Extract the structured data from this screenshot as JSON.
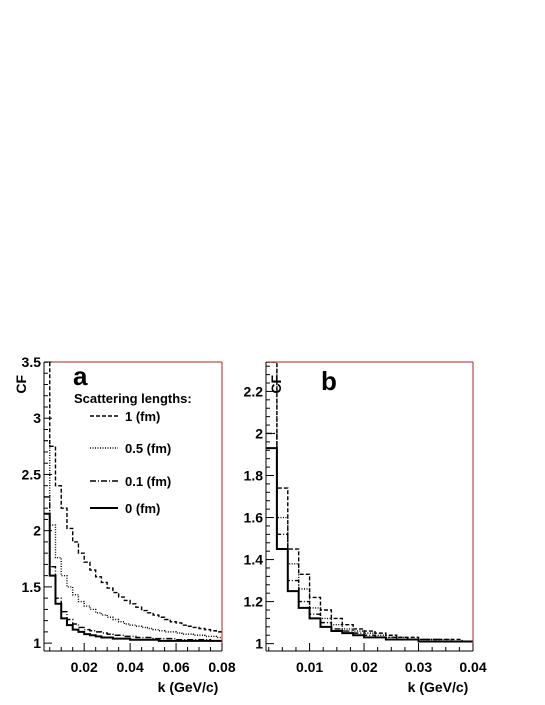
{
  "chart_data": [
    {
      "type": "line",
      "panel_label": "a",
      "xlabel": "k (GeV/c)",
      "ylabel": "CF",
      "xlim": [
        0.0025,
        0.08
      ],
      "ylim": [
        0.93,
        3.5
      ],
      "xticks": [
        0.02,
        0.04,
        0.06,
        0.08
      ],
      "xtick_labels": [
        "0.02",
        "0.04",
        "0.06",
        "0.08"
      ],
      "yticks": [
        1,
        1.5,
        2,
        2.5,
        3,
        3.5
      ],
      "ytick_labels": [
        "1",
        "1.5",
        "2",
        "2.5",
        "3",
        "3.5"
      ],
      "legend_title": "Scattering lengths:",
      "legend_placement": "top",
      "step": true,
      "bin_edges": [
        0.0025,
        0.005,
        0.0075,
        0.01,
        0.0125,
        0.015,
        0.0175,
        0.02,
        0.0225,
        0.025,
        0.0275,
        0.03,
        0.0325,
        0.035,
        0.0375,
        0.04,
        0.0425,
        0.045,
        0.0475,
        0.05,
        0.0525,
        0.055,
        0.0575,
        0.06,
        0.0625,
        0.065,
        0.0675,
        0.07,
        0.0725,
        0.075,
        0.0775,
        0.08
      ],
      "series": [
        {
          "name": "1 (fm)",
          "style": "dashed",
          "values": [
            3.5,
            2.75,
            2.4,
            2.2,
            2.02,
            1.9,
            1.8,
            1.72,
            1.65,
            1.59,
            1.54,
            1.49,
            1.45,
            1.41,
            1.38,
            1.35,
            1.32,
            1.29,
            1.27,
            1.25,
            1.23,
            1.21,
            1.19,
            1.18,
            1.16,
            1.15,
            1.14,
            1.13,
            1.12,
            1.11,
            1.1
          ]
        },
        {
          "name": "0.5 (fm)",
          "style": "dotted",
          "values": [
            2.8,
            2.05,
            1.76,
            1.6,
            1.5,
            1.43,
            1.37,
            1.33,
            1.3,
            1.27,
            1.25,
            1.23,
            1.21,
            1.19,
            1.17,
            1.16,
            1.15,
            1.14,
            1.13,
            1.12,
            1.11,
            1.1,
            1.1,
            1.09,
            1.08,
            1.08,
            1.07,
            1.07,
            1.06,
            1.06,
            1.05
          ]
        },
        {
          "name": "0.1 (fm)",
          "style": "dashdot",
          "values": [
            2.3,
            1.68,
            1.4,
            1.28,
            1.21,
            1.17,
            1.14,
            1.12,
            1.11,
            1.1,
            1.09,
            1.08,
            1.07,
            1.07,
            1.06,
            1.06,
            1.05,
            1.05,
            1.05,
            1.04,
            1.04,
            1.04,
            1.04,
            1.03,
            1.03,
            1.03,
            1.03,
            1.03,
            1.03,
            1.02,
            1.02
          ]
        },
        {
          "name": "0 (fm)",
          "style": "solid",
          "values": [
            2.15,
            1.6,
            1.35,
            1.22,
            1.16,
            1.12,
            1.1,
            1.08,
            1.07,
            1.06,
            1.05,
            1.05,
            1.04,
            1.04,
            1.04,
            1.03,
            1.03,
            1.03,
            1.03,
            1.03,
            1.02,
            1.02,
            1.02,
            1.02,
            1.02,
            1.02,
            1.02,
            1.02,
            1.02,
            1.02,
            1.02
          ]
        }
      ]
    },
    {
      "type": "line",
      "panel_label": "b",
      "xlabel": "k (GeV/c)",
      "ylabel": "CF",
      "xlim": [
        0.002,
        0.04
      ],
      "ylim": [
        0.965,
        2.34
      ],
      "xticks": [
        0.01,
        0.02,
        0.03,
        0.04
      ],
      "xtick_labels": [
        "0.01",
        "0.02",
        "0.03",
        "0.04"
      ],
      "yticks": [
        1,
        1.2,
        1.4,
        1.6,
        1.8,
        2,
        2.2
      ],
      "ytick_labels": [
        "1",
        "1.2",
        "1.4",
        "1.6",
        "1.8",
        "2",
        "2.2"
      ],
      "step": true,
      "bin_edges": [
        0.002,
        0.004,
        0.006,
        0.008,
        0.01,
        0.012,
        0.014,
        0.016,
        0.018,
        0.02,
        0.022,
        0.024,
        0.026,
        0.028,
        0.03,
        0.032,
        0.034,
        0.036,
        0.038,
        0.04
      ],
      "series": [
        {
          "name": "1 (fm)",
          "style": "dashed",
          "values": [
            2.34,
            1.74,
            1.45,
            1.33,
            1.22,
            1.16,
            1.12,
            1.09,
            1.07,
            1.06,
            1.05,
            1.04,
            1.03,
            1.03,
            1.02,
            1.02,
            1.02,
            1.02,
            1.01
          ]
        },
        {
          "name": "0.5 (fm)",
          "style": "dotted",
          "values": [
            2.34,
            1.6,
            1.38,
            1.26,
            1.17,
            1.12,
            1.09,
            1.07,
            1.06,
            1.05,
            1.04,
            1.03,
            1.03,
            1.02,
            1.02,
            1.02,
            1.02,
            1.01,
            1.01
          ]
        },
        {
          "name": "0.1 (fm)",
          "style": "dashdot",
          "values": [
            2.0,
            1.52,
            1.3,
            1.2,
            1.14,
            1.1,
            1.07,
            1.06,
            1.05,
            1.04,
            1.03,
            1.03,
            1.02,
            1.02,
            1.02,
            1.02,
            1.01,
            1.01,
            1.01
          ]
        },
        {
          "name": "0 (fm)",
          "style": "solid",
          "values": [
            1.93,
            1.45,
            1.25,
            1.17,
            1.12,
            1.08,
            1.06,
            1.05,
            1.04,
            1.03,
            1.03,
            1.02,
            1.02,
            1.02,
            1.01,
            1.01,
            1.01,
            1.01,
            1.01
          ]
        }
      ]
    }
  ]
}
